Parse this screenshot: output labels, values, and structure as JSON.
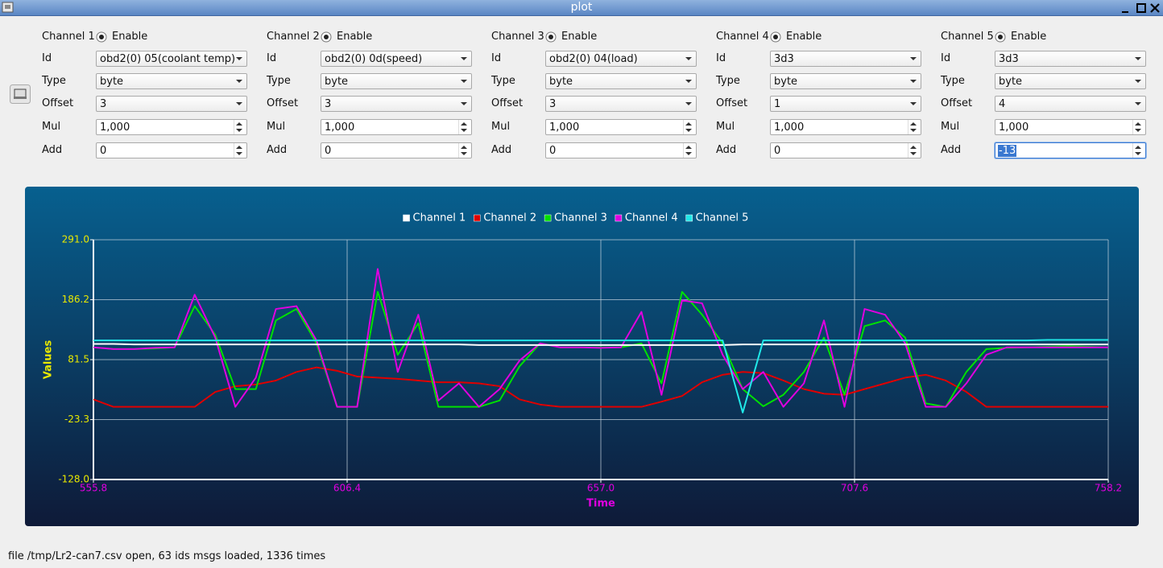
{
  "window": {
    "title": "plot"
  },
  "channels": [
    {
      "label": "Channel 1",
      "enable": "Enable",
      "fields": [
        {
          "label": "Id",
          "value": "obd2(0) 05(coolant temp)"
        },
        {
          "label": "Type",
          "value": "byte"
        },
        {
          "label": "Offset",
          "value": "3"
        },
        {
          "label": "Mul",
          "value": "1,000"
        },
        {
          "label": "Add",
          "value": "0"
        }
      ]
    },
    {
      "label": "Channel 2",
      "enable": "Enable",
      "fields": [
        {
          "label": "Id",
          "value": "obd2(0) 0d(speed)"
        },
        {
          "label": "Type",
          "value": "byte"
        },
        {
          "label": "Offset",
          "value": "3"
        },
        {
          "label": "Mul",
          "value": "1,000"
        },
        {
          "label": "Add",
          "value": "0"
        }
      ]
    },
    {
      "label": "Channel 3",
      "enable": "Enable",
      "fields": [
        {
          "label": "Id",
          "value": "obd2(0) 04(load)"
        },
        {
          "label": "Type",
          "value": "byte"
        },
        {
          "label": "Offset",
          "value": "3"
        },
        {
          "label": "Mul",
          "value": "1,000"
        },
        {
          "label": "Add",
          "value": "0"
        }
      ]
    },
    {
      "label": "Channel 4",
      "enable": "Enable",
      "fields": [
        {
          "label": "Id",
          "value": "3d3"
        },
        {
          "label": "Type",
          "value": "byte"
        },
        {
          "label": "Offset",
          "value": "1"
        },
        {
          "label": "Mul",
          "value": "1,000"
        },
        {
          "label": "Add",
          "value": "0"
        }
      ]
    },
    {
      "label": "Channel 5",
      "enable": "Enable",
      "fields": [
        {
          "label": "Id",
          "value": "3d3"
        },
        {
          "label": "Type",
          "value": "byte"
        },
        {
          "label": "Offset",
          "value": "4"
        },
        {
          "label": "Mul",
          "value": "1,000"
        },
        {
          "label": "Add",
          "value": "-13"
        }
      ]
    }
  ],
  "chart_data": {
    "type": "line",
    "x_label": "Time",
    "y_label": "Values",
    "legend": "top",
    "grid": true,
    "xlim": [
      555.8,
      758.2
    ],
    "xticks": [
      555.8,
      606.4,
      {
        "value": 657.0,
        "label": "657.0"
      },
      707.6,
      758.2
    ],
    "ylim": [
      -128.0,
      291.0
    ],
    "yticks": [
      {
        "value": -128.0,
        "label": "-128.0"
      },
      -23.3,
      81.5,
      186.2,
      {
        "value": 291.0,
        "label": "291.0"
      }
    ],
    "x": [
      555.8,
      559.8,
      563.9,
      567.9,
      572.0,
      576.0,
      580.1,
      584.1,
      588.2,
      592.2,
      596.3,
      600.3,
      604.4,
      608.4,
      612.5,
      616.5,
      620.6,
      624.6,
      628.7,
      632.7,
      636.8,
      640.8,
      644.9,
      648.9,
      653.0,
      657.0,
      661.0,
      665.1,
      669.1,
      673.2,
      677.2,
      681.3,
      685.3,
      689.4,
      693.4,
      697.5,
      701.5,
      705.6,
      709.6,
      713.7,
      717.7,
      721.8,
      725.8,
      729.9,
      733.9,
      738.0,
      742.0,
      746.1,
      750.1,
      754.2,
      758.2
    ],
    "series": [
      {
        "name": "Channel 1",
        "color": "#ffffff",
        "values": [
          109,
          109,
          108,
          108,
          108,
          108,
          108,
          108,
          108,
          108,
          108,
          108,
          108,
          108,
          108,
          108,
          108,
          108,
          108,
          107,
          107,
          107,
          107,
          107,
          107,
          107,
          107,
          107,
          107,
          107,
          107,
          107,
          108,
          108,
          108,
          108,
          108,
          108,
          108,
          108,
          108,
          108,
          108,
          108,
          108,
          108,
          108,
          108,
          108,
          108,
          108
        ]
      },
      {
        "name": "Channel 2",
        "color": "#e00000",
        "values": [
          12,
          -1,
          -1,
          -1,
          -1,
          -1,
          25,
          35,
          38,
          45,
          60,
          68,
          62,
          52,
          50,
          48,
          45,
          42,
          42,
          40,
          35,
          12,
          3,
          -1,
          -1,
          -1,
          -1,
          -1,
          8,
          18,
          42,
          55,
          60,
          58,
          45,
          30,
          22,
          20,
          30,
          40,
          50,
          55,
          45,
          25,
          -1,
          -1,
          -1,
          -1,
          -1,
          -1,
          -1
        ]
      },
      {
        "name": "Channel 3",
        "color": "#00e000",
        "values": [
          103,
          100,
          100,
          101,
          103,
          175,
          125,
          30,
          30,
          150,
          170,
          110,
          -1,
          -1,
          200,
          90,
          145,
          -1,
          -1,
          -1,
          10,
          70,
          110,
          103,
          103,
          103,
          103,
          110,
          40,
          200,
          160,
          110,
          30,
          0,
          20,
          60,
          120,
          20,
          140,
          150,
          120,
          5,
          -1,
          60,
          100,
          102,
          103,
          104,
          105,
          104,
          103
        ]
      },
      {
        "name": "Channel 4",
        "color": "#e000e0",
        "values": [
          103,
          100,
          100,
          102,
          103,
          195,
          120,
          -1,
          50,
          170,
          175,
          115,
          -1,
          -1,
          240,
          60,
          160,
          10,
          40,
          -1,
          30,
          80,
          110,
          103,
          103,
          102,
          103,
          165,
          20,
          185,
          180,
          90,
          30,
          60,
          -1,
          40,
          150,
          -1,
          170,
          160,
          110,
          -1,
          -1,
          40,
          90,
          103,
          103,
          103,
          103,
          103,
          103
        ]
      },
      {
        "name": "Channel 5",
        "color": "#20e8e8",
        "values": [
          115,
          115,
          115,
          115,
          115,
          115,
          115,
          115,
          115,
          115,
          115,
          115,
          115,
          115,
          115,
          115,
          115,
          115,
          115,
          115,
          115,
          115,
          115,
          115,
          115,
          115,
          115,
          115,
          115,
          115,
          115,
          115,
          -11,
          115,
          115,
          115,
          115,
          115,
          115,
          115,
          115,
          115,
          115,
          115,
          115,
          115,
          115,
          116,
          116,
          116,
          116
        ]
      }
    ]
  },
  "status": "file /tmp/Lr2-can7.csv open, 63 ids msgs loaded, 1336 times"
}
